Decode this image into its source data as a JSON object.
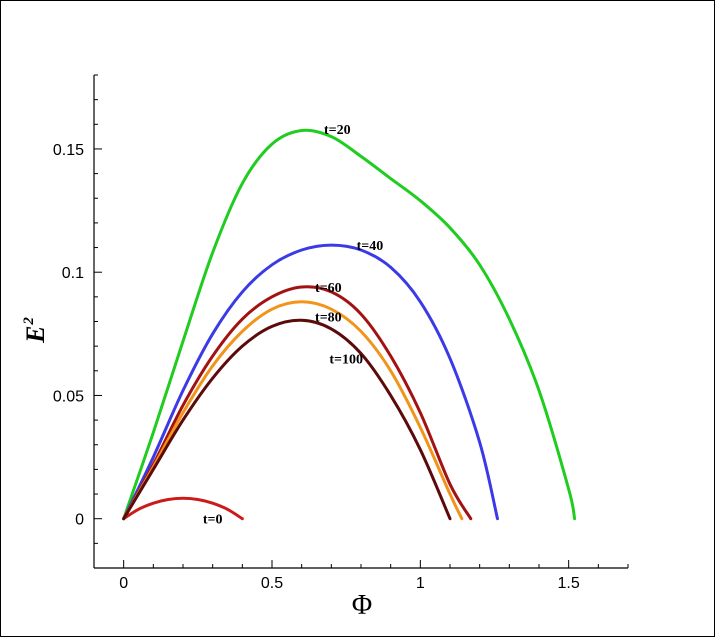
{
  "chart_data": {
    "type": "line",
    "xlabel": "Φ",
    "ylabel": "E",
    "ylabel_superscript": "2",
    "xlim": [
      -0.1,
      1.7
    ],
    "ylim": [
      -0.02,
      0.18
    ],
    "x_ticks": [
      0,
      0.5,
      1,
      1.5
    ],
    "x_tick_labels": [
      "0",
      "0.5",
      "1",
      "1.5"
    ],
    "y_ticks": [
      0,
      0.05,
      0.1,
      0.15
    ],
    "y_tick_labels": [
      "0",
      "0.05",
      "0.1",
      "0.15"
    ],
    "grid": false,
    "series": [
      {
        "name": "t=0",
        "color": "#cc1a1a",
        "label_at": [
          0.3,
          0.0
        ],
        "points": [
          [
            0,
            0
          ],
          [
            0.05,
            0.0038
          ],
          [
            0.1,
            0.0063
          ],
          [
            0.15,
            0.0078
          ],
          [
            0.2,
            0.0083
          ],
          [
            0.25,
            0.0078
          ],
          [
            0.3,
            0.0063
          ],
          [
            0.35,
            0.0038
          ],
          [
            0.4,
            0
          ]
        ]
      },
      {
        "name": "t=20",
        "color": "#1fcc1f",
        "label_at": [
          0.72,
          0.158
        ],
        "points": [
          [
            0,
            0
          ],
          [
            0.1,
            0.035
          ],
          [
            0.2,
            0.072
          ],
          [
            0.3,
            0.108
          ],
          [
            0.4,
            0.136
          ],
          [
            0.5,
            0.152
          ],
          [
            0.6,
            0.1575
          ],
          [
            0.7,
            0.155
          ],
          [
            0.8,
            0.147
          ],
          [
            0.9,
            0.138
          ],
          [
            1.0,
            0.129
          ],
          [
            1.1,
            0.118
          ],
          [
            1.2,
            0.103
          ],
          [
            1.3,
            0.081
          ],
          [
            1.4,
            0.052
          ],
          [
            1.5,
            0.012
          ],
          [
            1.52,
            0
          ]
        ]
      },
      {
        "name": "t=40",
        "color": "#3a3ae6",
        "label_at": [
          0.83,
          0.111
        ],
        "points": [
          [
            0,
            0
          ],
          [
            0.1,
            0.025
          ],
          [
            0.2,
            0.052
          ],
          [
            0.3,
            0.075
          ],
          [
            0.4,
            0.092
          ],
          [
            0.5,
            0.103
          ],
          [
            0.6,
            0.109
          ],
          [
            0.7,
            0.111
          ],
          [
            0.8,
            0.109
          ],
          [
            0.9,
            0.102
          ],
          [
            1.0,
            0.088
          ],
          [
            1.1,
            0.065
          ],
          [
            1.2,
            0.031
          ],
          [
            1.26,
            0
          ]
        ]
      },
      {
        "name": "t=60",
        "color": "#a31212",
        "label_at": [
          0.69,
          0.094
        ],
        "points": [
          [
            0,
            0
          ],
          [
            0.1,
            0.022
          ],
          [
            0.2,
            0.046
          ],
          [
            0.3,
            0.066
          ],
          [
            0.4,
            0.081
          ],
          [
            0.5,
            0.09
          ],
          [
            0.6,
            0.094
          ],
          [
            0.7,
            0.092
          ],
          [
            0.8,
            0.083
          ],
          [
            0.9,
            0.066
          ],
          [
            1.0,
            0.043
          ],
          [
            1.1,
            0.014
          ],
          [
            1.17,
            0
          ]
        ]
      },
      {
        "name": "t=80",
        "color": "#f29419",
        "label_at": [
          0.69,
          0.082
        ],
        "points": [
          [
            0,
            0
          ],
          [
            0.1,
            0.021
          ],
          [
            0.2,
            0.043
          ],
          [
            0.3,
            0.062
          ],
          [
            0.4,
            0.076
          ],
          [
            0.5,
            0.085
          ],
          [
            0.6,
            0.088
          ],
          [
            0.7,
            0.085
          ],
          [
            0.8,
            0.076
          ],
          [
            0.9,
            0.06
          ],
          [
            1.0,
            0.037
          ],
          [
            1.1,
            0.01
          ],
          [
            1.14,
            0
          ]
        ]
      },
      {
        "name": "t=100",
        "color": "#5c0a0a",
        "label_at": [
          0.75,
          0.065
        ],
        "points": [
          [
            0,
            0
          ],
          [
            0.1,
            0.02
          ],
          [
            0.2,
            0.04
          ],
          [
            0.3,
            0.057
          ],
          [
            0.4,
            0.07
          ],
          [
            0.5,
            0.078
          ],
          [
            0.6,
            0.0805
          ],
          [
            0.7,
            0.077
          ],
          [
            0.8,
            0.067
          ],
          [
            0.9,
            0.05
          ],
          [
            1.0,
            0.028
          ],
          [
            1.1,
            0
          ]
        ]
      }
    ]
  }
}
